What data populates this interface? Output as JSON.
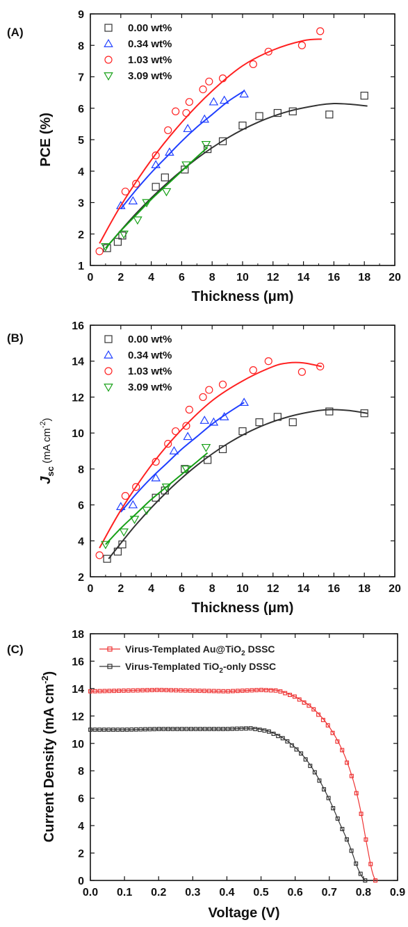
{
  "chart_data": [
    {
      "panel_label": "(A)",
      "type": "scatter",
      "xlabel": "Thickness (μm)",
      "ylabel": "PCE (%)",
      "xlim": [
        0,
        20
      ],
      "ylim": [
        1,
        9
      ],
      "x_ticks": [
        "0",
        "2",
        "4",
        "6",
        "8",
        "10",
        "12",
        "14",
        "16",
        "18",
        "20"
      ],
      "y_ticks": [
        "1",
        "2",
        "3",
        "4",
        "5",
        "6",
        "7",
        "8",
        "9"
      ],
      "legend_position": "top-left",
      "grid": false,
      "series": [
        {
          "name": "0.00 wt%",
          "marker": "square",
          "color": "#333333",
          "x": [
            1.1,
            1.8,
            2.1,
            4.3,
            4.9,
            6.2,
            7.7,
            8.7,
            10.0,
            11.1,
            12.3,
            13.3,
            15.7,
            18.0
          ],
          "y": [
            1.55,
            1.75,
            1.95,
            3.5,
            3.8,
            4.05,
            4.7,
            4.95,
            5.45,
            5.75,
            5.85,
            5.9,
            5.8,
            6.4
          ],
          "fit_x": [
            1.0,
            3,
            5,
            7,
            9,
            11,
            13,
            15,
            16,
            17,
            18.2
          ],
          "fit_y": [
            1.55,
            2.65,
            3.6,
            4.4,
            5.05,
            5.55,
            5.9,
            6.1,
            6.15,
            6.13,
            6.07
          ]
        },
        {
          "name": "0.34 wt%",
          "marker": "triangle-up",
          "color": "#1f3fff",
          "x": [
            2.0,
            2.8,
            4.3,
            5.2,
            6.4,
            7.5,
            8.1,
            8.8,
            10.1
          ],
          "y": [
            2.9,
            3.05,
            4.2,
            4.6,
            5.35,
            5.65,
            6.2,
            6.25,
            6.45
          ],
          "fit_x": [
            2.0,
            3,
            4,
            5,
            6,
            7,
            8,
            9,
            10.1
          ],
          "fit_y": [
            2.8,
            3.4,
            3.95,
            4.45,
            4.95,
            5.4,
            5.8,
            6.2,
            6.55
          ]
        },
        {
          "name": "1.03 wt%",
          "marker": "circle",
          "color": "#ff2020",
          "x": [
            0.6,
            2.3,
            3.0,
            4.3,
            5.1,
            5.6,
            6.3,
            6.5,
            7.4,
            7.8,
            8.7,
            10.7,
            11.7,
            13.9,
            15.1
          ],
          "y": [
            1.45,
            3.35,
            3.6,
            4.5,
            5.3,
            5.9,
            5.85,
            6.2,
            6.6,
            6.85,
            6.95,
            7.4,
            7.8,
            8.0,
            8.45
          ],
          "fit_x": [
            0.6,
            2,
            4,
            6,
            8,
            10,
            12,
            14,
            15.2
          ],
          "fit_y": [
            1.7,
            2.9,
            4.35,
            5.55,
            6.55,
            7.35,
            7.85,
            8.15,
            8.2
          ]
        },
        {
          "name": "3.09 wt%",
          "marker": "triangle-down",
          "color": "#16a016",
          "x": [
            1.0,
            2.2,
            3.1,
            3.7,
            5.0,
            6.3,
            7.6
          ],
          "y": [
            1.6,
            2.0,
            2.45,
            3.0,
            3.35,
            4.2,
            4.85
          ],
          "fit_x": [
            1.0,
            2,
            3,
            4,
            5,
            6,
            7,
            7.7
          ],
          "fit_y": [
            1.55,
            2.1,
            2.6,
            3.1,
            3.55,
            4.0,
            4.45,
            4.75
          ]
        }
      ]
    },
    {
      "panel_label": "(B)",
      "type": "scatter",
      "xlabel": "Thickness (μm)",
      "ylabel_main": "J",
      "ylabel_sub": "sc",
      "ylabel_rest": " (mA cm",
      "ylabel_sup": "-2",
      "ylabel_end": ")",
      "xlim": [
        0,
        20
      ],
      "ylim": [
        2,
        16
      ],
      "x_ticks": [
        "0",
        "2",
        "4",
        "6",
        "8",
        "10",
        "12",
        "14",
        "16",
        "18",
        "20"
      ],
      "y_ticks": [
        "2",
        "4",
        "6",
        "8",
        "10",
        "12",
        "14",
        "16"
      ],
      "legend_position": "top-left",
      "grid": false,
      "series": [
        {
          "name": "0.00 wt%",
          "marker": "square",
          "color": "#333333",
          "x": [
            1.1,
            1.8,
            2.1,
            4.3,
            4.9,
            6.2,
            7.7,
            8.7,
            10.0,
            11.1,
            12.3,
            13.3,
            15.7,
            18.0
          ],
          "y": [
            3.0,
            3.4,
            3.8,
            6.4,
            6.8,
            8.0,
            8.5,
            9.1,
            10.1,
            10.6,
            10.9,
            10.6,
            11.2,
            11.1
          ],
          "fit_x": [
            1.2,
            3,
            5,
            7,
            9,
            11,
            13,
            15,
            16,
            17,
            18.2
          ],
          "fit_y": [
            3.0,
            4.9,
            6.7,
            8.2,
            9.4,
            10.3,
            10.9,
            11.25,
            11.3,
            11.25,
            11.1
          ]
        },
        {
          "name": "0.34 wt%",
          "marker": "triangle-up",
          "color": "#1f3fff",
          "x": [
            2.0,
            2.8,
            4.3,
            5.5,
            6.4,
            7.5,
            8.1,
            8.8,
            10.1
          ],
          "y": [
            5.9,
            6.0,
            7.5,
            9.0,
            9.8,
            10.7,
            10.6,
            10.9,
            11.7
          ],
          "fit_x": [
            2.0,
            3,
            4,
            5,
            6,
            7,
            8,
            9,
            10.1
          ],
          "fit_y": [
            5.6,
            6.6,
            7.5,
            8.3,
            9.1,
            9.8,
            10.5,
            11.1,
            11.7
          ]
        },
        {
          "name": "1.03 wt%",
          "marker": "circle",
          "color": "#ff2020",
          "x": [
            0.6,
            2.3,
            3.0,
            4.3,
            5.1,
            5.6,
            6.3,
            6.5,
            7.4,
            7.8,
            8.7,
            10.7,
            11.7,
            13.9,
            15.1
          ],
          "y": [
            3.2,
            6.5,
            7.0,
            8.4,
            9.4,
            10.1,
            10.4,
            11.3,
            12.0,
            12.4,
            12.7,
            13.5,
            14.0,
            13.4,
            13.7
          ],
          "fit_x": [
            0.6,
            2,
            4,
            6,
            8,
            10,
            12,
            13,
            14,
            15.2
          ],
          "fit_y": [
            3.6,
            5.7,
            8.2,
            10.2,
            11.8,
            12.9,
            13.7,
            13.9,
            13.9,
            13.7
          ]
        },
        {
          "name": "3.09 wt%",
          "marker": "triangle-down",
          "color": "#16a016",
          "x": [
            1.0,
            2.2,
            2.9,
            3.7,
            5.0,
            6.3,
            7.6
          ],
          "y": [
            3.8,
            4.5,
            5.2,
            5.7,
            7.0,
            8.0,
            9.2
          ],
          "fit_x": [
            1.0,
            2,
            3,
            4,
            5,
            6,
            7,
            7.7
          ],
          "fit_y": [
            3.8,
            4.7,
            5.5,
            6.3,
            7.0,
            7.7,
            8.4,
            8.9
          ]
        }
      ]
    },
    {
      "panel_label": "(C)",
      "type": "line",
      "xlabel": "Voltage (V)",
      "ylabel": "Current Density (mA cm",
      "ylabel_sup": "-2",
      "ylabel_end": ")",
      "xlim": [
        0,
        0.9
      ],
      "ylim": [
        0,
        18
      ],
      "x_ticks": [
        "0.0",
        "0.1",
        "0.2",
        "0.3",
        "0.4",
        "0.5",
        "0.6",
        "0.7",
        "0.8",
        "0.9"
      ],
      "y_ticks": [
        "0",
        "2",
        "4",
        "6",
        "8",
        "10",
        "12",
        "14",
        "16",
        "18"
      ],
      "legend_position": "top-left",
      "grid": false,
      "series": [
        {
          "name_pre": "Virus-Templated Au@TiO",
          "name_sub": "2",
          "name_post": " DSSC",
          "marker": "square",
          "color": "#ee3333",
          "x": [
            0.0,
            0.1,
            0.2,
            0.3,
            0.4,
            0.5,
            0.55,
            0.6,
            0.65,
            0.7,
            0.74,
            0.77,
            0.79,
            0.81,
            0.825,
            0.835
          ],
          "y": [
            13.8,
            13.85,
            13.9,
            13.85,
            13.8,
            13.9,
            13.85,
            13.4,
            12.6,
            11.2,
            9.4,
            7.3,
            5.3,
            2.6,
            0.7,
            0.0
          ]
        },
        {
          "name_pre": "Virus-Templated TiO",
          "name_sub": "2",
          "name_post": "-only DSSC",
          "marker": "square",
          "color": "#333333",
          "x": [
            0.0,
            0.1,
            0.2,
            0.3,
            0.4,
            0.47,
            0.52,
            0.57,
            0.62,
            0.66,
            0.7,
            0.73,
            0.76,
            0.78,
            0.795,
            0.805
          ],
          "y": [
            11.0,
            11.0,
            11.05,
            11.05,
            11.05,
            11.1,
            10.9,
            10.3,
            9.2,
            7.8,
            5.9,
            4.2,
            2.5,
            1.1,
            0.3,
            0.0
          ]
        }
      ]
    }
  ]
}
